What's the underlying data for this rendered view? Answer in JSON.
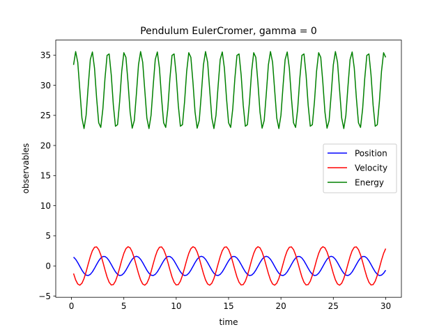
{
  "chart_data": {
    "type": "line",
    "title": "Pendulum EulerCromer, gamma = 0",
    "xlabel": "time",
    "ylabel": "observables",
    "xlim": [
      -1.5,
      31.5
    ],
    "ylim": [
      -5.2,
      37.5
    ],
    "xticks": [
      0,
      5,
      10,
      15,
      20,
      25,
      30
    ],
    "yticks": [
      -5,
      0,
      5,
      10,
      15,
      20,
      25,
      30,
      35
    ],
    "grid": false,
    "legend_position": "center-right",
    "series": [
      {
        "name": "Position",
        "color": "#0000ff",
        "model": {
          "kind": "sin",
          "t_start": 0.2,
          "t_end": 30.0,
          "dt": 0.2,
          "offset": 0,
          "amplitude": 1.6,
          "period": 3.1,
          "phase": 1.57
        }
      },
      {
        "name": "Velocity",
        "color": "#ff0000",
        "model": {
          "kind": "sin",
          "t_start": 0.2,
          "t_end": 30.0,
          "dt": 0.2,
          "offset": 0,
          "amplitude": 3.2,
          "period": 3.1,
          "phase": 3.14
        }
      },
      {
        "name": "Energy",
        "color": "#008000",
        "model": {
          "kind": "sin",
          "t_start": 0.2,
          "t_end": 30.0,
          "dt": 0.2,
          "offset": 29.2,
          "amplitude": 6.4,
          "period": 1.55,
          "phase": -0.1
        }
      }
    ]
  }
}
